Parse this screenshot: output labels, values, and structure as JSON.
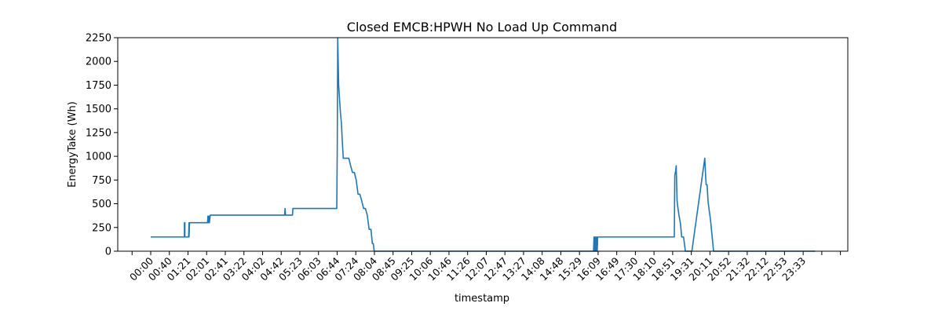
{
  "chart_data": {
    "type": "line",
    "title": "Closed EMCB:HPWH No Load Up Command",
    "xlabel": "timestamp",
    "ylabel": "EnergyTake (Wh)",
    "ylim": [
      0,
      2250
    ],
    "yticks": [
      0,
      250,
      500,
      750,
      1000,
      1250,
      1500,
      1750,
      2000,
      2250
    ],
    "grid": false,
    "line_color": "#1f77b4",
    "xticklabels": [
      "00:00",
      "00:40",
      "01:21",
      "02:01",
      "02:41",
      "03:22",
      "04:02",
      "04:42",
      "05:23",
      "06:03",
      "06:44",
      "07:24",
      "08:04",
      "08:45",
      "09:25",
      "10:06",
      "10:46",
      "11:26",
      "12:07",
      "12:47",
      "13:27",
      "14:08",
      "14:48",
      "15:29",
      "16:09",
      "16:49",
      "17:30",
      "18:10",
      "18:51",
      "19:31",
      "20:11",
      "20:52",
      "21:32",
      "22:12",
      "22:53",
      "23:33"
    ],
    "series": [
      {
        "x": [
          "00:00",
          "01:13",
          "01:13",
          "01:14",
          "01:14",
          "01:22",
          "01:23",
          "01:23",
          "01:24",
          "02:03",
          "02:04",
          "02:05",
          "02:06",
          "02:07",
          "02:09",
          "02:10",
          "04:50",
          "04:51",
          "04:52",
          "05:07",
          "05:08",
          "06:43",
          "06:44",
          "06:45",
          "06:47",
          "06:49",
          "06:51",
          "06:53",
          "06:55",
          "06:57",
          "07:01",
          "07:05",
          "07:09",
          "07:13",
          "07:17",
          "07:21",
          "07:25",
          "07:29",
          "07:33",
          "07:37",
          "07:41",
          "07:45",
          "07:49",
          "07:53",
          "07:57",
          "08:00",
          "08:02",
          "08:04",
          "15:59",
          "16:00",
          "16:01",
          "16:02",
          "16:03",
          "16:04",
          "16:05",
          "16:06",
          "16:07",
          "16:08",
          "16:10",
          "16:11",
          "18:54",
          "18:55",
          "18:57",
          "18:58",
          "19:00",
          "19:02",
          "19:04",
          "19:07",
          "19:10",
          "19:14",
          "19:18",
          "19:22",
          "19:26",
          "19:29",
          "19:30",
          "19:31",
          "19:32",
          "20:00",
          "20:02",
          "20:03",
          "20:05",
          "20:07",
          "20:09",
          "20:11",
          "20:13",
          "20:16",
          "20:19",
          "20:22",
          "20:25",
          "20:28",
          "20:31",
          "20:34",
          "20:38",
          "23:59"
        ],
        "y": [
          150,
          150,
          300,
          300,
          150,
          150,
          300,
          150,
          300,
          300,
          370,
          300,
          370,
          300,
          380,
          380,
          380,
          450,
          380,
          380,
          450,
          450,
          1100,
          2250,
          1750,
          1600,
          1450,
          1350,
          1150,
          980,
          980,
          980,
          980,
          900,
          830,
          830,
          750,
          600,
          600,
          530,
          450,
          450,
          380,
          230,
          230,
          80,
          80,
          0,
          0,
          150,
          0,
          150,
          0,
          150,
          0,
          150,
          0,
          150,
          150,
          150,
          150,
          800,
          850,
          900,
          530,
          450,
          380,
          300,
          150,
          150,
          0,
          0,
          0,
          0,
          0,
          0,
          0,
          980,
          770,
          700,
          700,
          530,
          450,
          380,
          300,
          150,
          0,
          0,
          0,
          0,
          0,
          0,
          0,
          0
        ]
      }
    ]
  }
}
